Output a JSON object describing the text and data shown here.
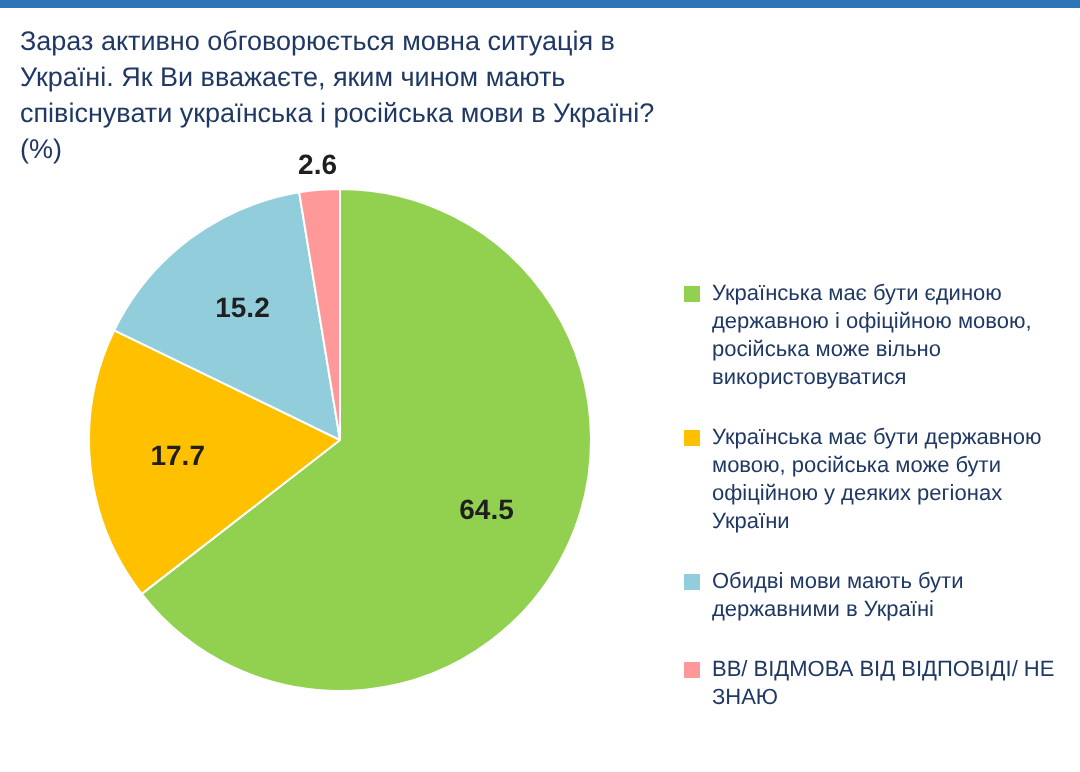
{
  "chart_data": {
    "type": "pie",
    "title": "Зараз активно обговорюється мовна ситуація в Україні. Як Ви вважаєте, яким чином мають співіснувати українська і російська мови в Україні? (%)",
    "categories": [
      "Українська має бути єдиною державною і офіційною мовою, російська може вільно використовуватися",
      "Українська має бути державною мовою, російська може бути офіційною у деяких регіонах України",
      "Обидві мови мають бути державними в Україні",
      "ВВ/ ВІДМОВА ВІД ВІДПОВІДІ/ НЕ ЗНАЮ"
    ],
    "values": [
      64.5,
      17.7,
      15.2,
      2.6
    ],
    "colors": [
      "#92d050",
      "#ffc000",
      "#92cddc",
      "#ff9999"
    ],
    "data_labels": true,
    "legend": "right"
  }
}
